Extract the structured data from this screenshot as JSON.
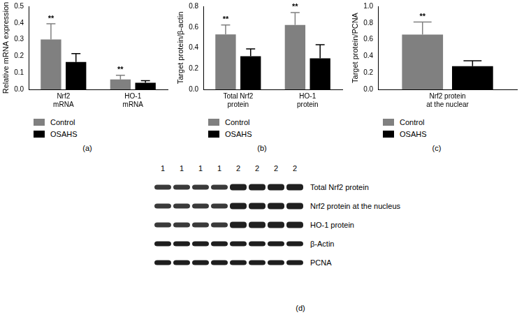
{
  "chart_data": [
    {
      "type": "bar",
      "caption": "(a)",
      "y_label": "Relative mRNA expression",
      "categories": [
        "Nrf2\nmRNA",
        "HO-1\nmRNA"
      ],
      "series": [
        {
          "name": "Control",
          "color": "#808080",
          "values": [
            0.3,
            0.06
          ],
          "errors": [
            0.095,
            0.025
          ],
          "sig_labels": [
            "**",
            "**"
          ]
        },
        {
          "name": "OSAHS",
          "color": "#000000",
          "values": [
            0.165,
            0.04
          ],
          "errors": [
            0.05,
            0.012
          ]
        }
      ],
      "ylim": [
        0,
        0.5
      ],
      "yticks": [
        {
          "value": 0,
          "label": "0.0"
        },
        0.1,
        0.2,
        0.3,
        0.4,
        0.5
      ],
      "grid": false,
      "legend": "bottom"
    },
    {
      "type": "bar",
      "caption": "(b)",
      "y_label": "Target protein/β-actin",
      "categories": [
        "Total Nrf2\nprotein",
        "HO-1\nprotein"
      ],
      "series": [
        {
          "name": "Control",
          "color": "#808080",
          "values": [
            0.53,
            0.62
          ],
          "errors": [
            0.09,
            0.12
          ],
          "sig_labels": [
            "**",
            "**"
          ]
        },
        {
          "name": "OSAHS",
          "color": "#000000",
          "values": [
            0.32,
            0.3
          ],
          "errors": [
            0.07,
            0.13
          ]
        }
      ],
      "ylim": [
        0,
        0.8
      ],
      "yticks": [
        {
          "value": 0,
          "label": "0.0"
        },
        0.2,
        0.4,
        0.6,
        0.8
      ],
      "grid": false,
      "legend": "bottom"
    },
    {
      "type": "bar",
      "caption": "(c)",
      "y_label": "Target protein/PCNA",
      "categories": [
        "Nrf2 protein\nat the nuclear"
      ],
      "series": [
        {
          "name": "Control",
          "color": "#808080",
          "values": [
            0.66
          ],
          "errors": [
            0.15
          ],
          "sig_labels": [
            "**"
          ]
        },
        {
          "name": "OSAHS",
          "color": "#000000",
          "values": [
            0.28
          ],
          "errors": [
            0.065
          ]
        }
      ],
      "ylim": [
        0,
        1.0
      ],
      "yticks": [
        {
          "value": 0,
          "label": "0.0"
        },
        0.2,
        0.4,
        0.6,
        0.8,
        {
          "value": 1.0,
          "label": "1.0"
        }
      ],
      "grid": false,
      "legend": "bottom"
    }
  ],
  "blot": {
    "caption": "(d)",
    "lanes": [
      "1",
      "1",
      "1",
      "1",
      "2",
      "2",
      "2",
      "2"
    ],
    "rows": [
      "Total Nrf2 protein",
      "Nrf2 protein at the nucleus",
      "HO-1 protein",
      "β-Actin",
      "PCNA"
    ]
  }
}
